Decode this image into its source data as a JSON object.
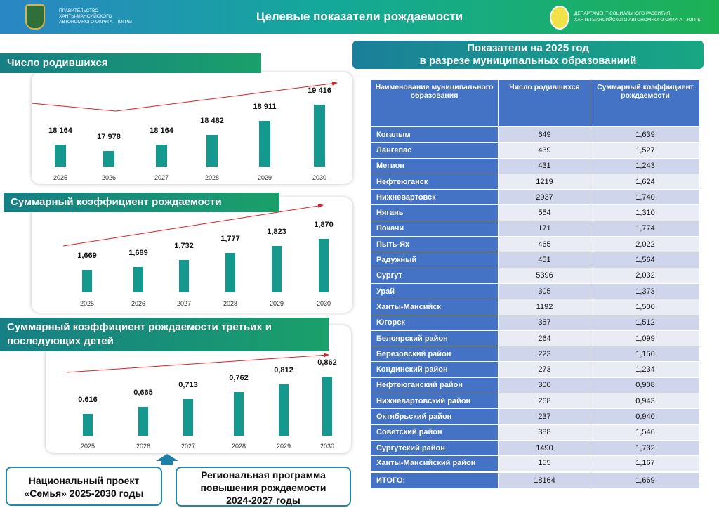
{
  "header": {
    "gov": [
      "ПРАВИТЕЛЬСТВО",
      "ХАНТЫ-МАНСИЙСКОГО",
      "АВТОНОМНОГО ОКРУГА – ЮГРЫ"
    ],
    "title": "Целевые показатели рождаемости",
    "dept": [
      "ДЕПАРТАМЕНТ СОЦИАЛЬНОГО РАЗВИТИЯ",
      "ХАНТЫ-МАНСИЙСКОГО АВТОНОМНОГО ОКРУГА – ЮГРЫ"
    ]
  },
  "chart_data": [
    {
      "type": "bar",
      "title": "Число родившихся",
      "categories": [
        "2025",
        "2026",
        "2027",
        "2028",
        "2029",
        "2030"
      ],
      "values": [
        18164,
        17978,
        18164,
        18482,
        18911,
        19416
      ],
      "labels": [
        "18 164",
        "17 978",
        "18 164",
        "18 482",
        "18 911",
        "19 416"
      ]
    },
    {
      "type": "bar",
      "title": "Суммарный коэффициент рождаемости",
      "categories": [
        "2025",
        "2026",
        "2027",
        "2028",
        "2029",
        "2030"
      ],
      "values": [
        1.669,
        1.689,
        1.732,
        1.777,
        1.823,
        1.87
      ],
      "labels": [
        "1,669",
        "1,689",
        "1,732",
        "1,777",
        "1,823",
        "1,870"
      ]
    },
    {
      "type": "bar",
      "title": "Суммарный коэффициент рождаемости третьих и последующих детей",
      "categories": [
        "2025",
        "2026",
        "2027",
        "2028",
        "2029",
        "2030"
      ],
      "values": [
        0.616,
        0.665,
        0.713,
        0.762,
        0.812,
        0.862
      ],
      "labels": [
        "0,616",
        "0,665",
        "0,713",
        "0,762",
        "0,812",
        "0,862"
      ]
    }
  ],
  "table": {
    "banner": [
      "Показатели на 2025 год",
      "в разрезе муниципальных образованиий"
    ],
    "headers": [
      "Наименование муниципального образования",
      "Число родившихся",
      "Суммарный коэффициент рождаемости"
    ],
    "rows": [
      [
        "Когалым",
        "649",
        "1,639"
      ],
      [
        "Лангепас",
        "439",
        "1,527"
      ],
      [
        "Мегион",
        "431",
        "1,243"
      ],
      [
        "Нефтеюганск",
        "1219",
        "1,624"
      ],
      [
        "Нижневартовск",
        "2937",
        "1,740"
      ],
      [
        "Нягань",
        "554",
        "1,310"
      ],
      [
        "Покачи",
        "171",
        "1,774"
      ],
      [
        "Пыть-Ях",
        "465",
        "2,022"
      ],
      [
        "Радужный",
        "451",
        "1,564"
      ],
      [
        "Сургут",
        "5396",
        "2,032"
      ],
      [
        "Урай",
        "305",
        "1,373"
      ],
      [
        "Ханты-Мансийск",
        "1192",
        "1,500"
      ],
      [
        "Югорск",
        "357",
        "1,512"
      ],
      [
        "Белоярский район",
        "264",
        "1,099"
      ],
      [
        "Березовский район",
        "223",
        "1,156"
      ],
      [
        "Кондинский район",
        "273",
        "1,234"
      ],
      [
        "Нефтеюганский район",
        "300",
        "0,908"
      ],
      [
        "Нижневартовский район",
        "268",
        "0,943"
      ],
      [
        "Октябрьский район",
        "237",
        "0,940"
      ],
      [
        "Советский район",
        "388",
        "1,546"
      ],
      [
        "Сургутский район",
        "1490",
        "1,732"
      ],
      [
        "Ханты-Мансийский район",
        "155",
        "1,167"
      ]
    ],
    "total": [
      "ИТОГО:",
      "18164",
      "1,669"
    ]
  },
  "boxes": {
    "national": [
      "Национальный проект",
      "«Семья» 2025-2030 годы"
    ],
    "regional": [
      "Региональная программа",
      "повышения рождаемости",
      "2024-2027 годы"
    ]
  }
}
